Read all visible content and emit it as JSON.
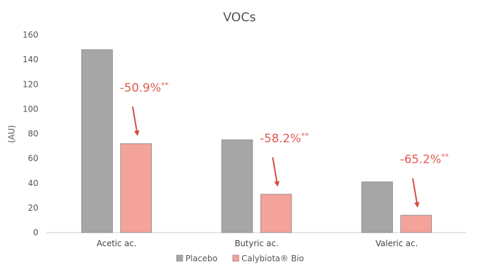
{
  "chart_data": {
    "type": "bar",
    "title": "VOCs",
    "xlabel": "",
    "ylabel": "(AU)",
    "ylim": [
      0,
      160
    ],
    "yticks": [
      0,
      20,
      40,
      60,
      80,
      100,
      120,
      140,
      160
    ],
    "grid": false,
    "legend_position": "bottom",
    "categories": [
      "Acetic ac.",
      "Butyric ac.",
      "Valeric ac."
    ],
    "series": [
      {
        "name": "Placebo",
        "color": "#a6a6a6",
        "values": [
          148,
          75,
          41
        ]
      },
      {
        "name": "Calybiota® Bio",
        "color": "#f4a39a",
        "values": [
          72,
          31,
          14
        ]
      }
    ],
    "annotations": [
      {
        "category": "Acetic ac.",
        "text": "-50.9%",
        "sup": "**"
      },
      {
        "category": "Butyric ac.",
        "text": "-58.2%",
        "sup": "**"
      },
      {
        "category": "Valeric ac.",
        "text": "-65.2%",
        "sup": "**"
      }
    ],
    "annotation_color": "#e05a4f"
  }
}
